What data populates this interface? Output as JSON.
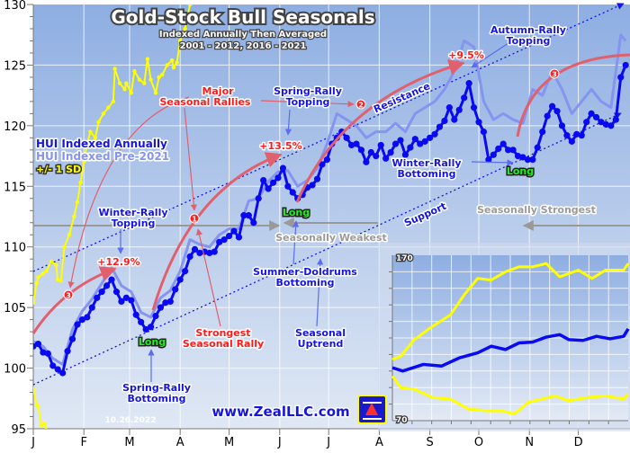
{
  "chart_data": {
    "type": "line",
    "title": "Gold-Stock Bull Seasonals",
    "subtitle": [
      "Indexed Annually Then Averaged",
      "2001 - 2012, 2016 - 2021"
    ],
    "xlim_day_of_year": [
      1,
      365
    ],
    "ylim": [
      95,
      130
    ],
    "y_ticks": [
      "95",
      "100",
      "105",
      "110",
      "115",
      "120",
      "125",
      "130"
    ],
    "x_ticks": [
      "J",
      "F",
      "M",
      "A",
      "M",
      "J",
      "J",
      "A",
      "S",
      "O",
      "N",
      "D"
    ],
    "grid": true,
    "legend": {
      "placement": "left",
      "items": [
        "HUI Indexed Annually",
        "HUI Indexed Pre-2021",
        "+/- 1 SD"
      ]
    },
    "colors": {
      "main": "#0a0af0",
      "pre2021": "#8594ee",
      "sd": "#ffff00",
      "rally_arcs": "#e0606e",
      "text_red": "#ff1a1a",
      "text_blue": "#1515e0",
      "long": "#22ee22"
    },
    "series": [
      {
        "name": "HUI Indexed Annually",
        "x": [
          1,
          4,
          7,
          10,
          13,
          16,
          19,
          22,
          25,
          28,
          31,
          34,
          37,
          40,
          43,
          46,
          49,
          52,
          55,
          58,
          61,
          64,
          67,
          70,
          73,
          76,
          79,
          82,
          85,
          88,
          91,
          94,
          97,
          100,
          103,
          106,
          109,
          112,
          115,
          118,
          121,
          124,
          127,
          130,
          133,
          136,
          139,
          142,
          145,
          148,
          151,
          154,
          157,
          160,
          163,
          166,
          169,
          172,
          175,
          178,
          181,
          184,
          187,
          190,
          193,
          196,
          199,
          202,
          205,
          208,
          211,
          214,
          217,
          220,
          223,
          226,
          229,
          232,
          235,
          238,
          241,
          244,
          247,
          250,
          253,
          256,
          259,
          262,
          265,
          268,
          271,
          274,
          277,
          280,
          283,
          286,
          289,
          292,
          295,
          298,
          301,
          304,
          307,
          310,
          313,
          316,
          319,
          322,
          325,
          328,
          331,
          334,
          337,
          340,
          343,
          346,
          349,
          352,
          355,
          358,
          361,
          364
        ],
        "y": [
          101.8,
          102,
          101.3,
          101.2,
          100.2,
          99.9,
          99.6,
          101.4,
          102.4,
          103.6,
          104,
          104.2,
          105,
          105.8,
          106.3,
          106.8,
          107.3,
          106.3,
          105.5,
          105.8,
          105.6,
          104.4,
          103.8,
          103.2,
          103.4,
          104.3,
          105,
          105.4,
          105.5,
          106.5,
          107.3,
          108,
          109.2,
          109.8,
          109.5,
          109.6,
          109.5,
          109.6,
          110.4,
          110.6,
          110.9,
          111.3,
          110.8,
          112.6,
          112.6,
          112,
          114,
          115.5,
          114.8,
          115.3,
          115.7,
          116.5,
          115,
          114.5,
          114,
          114.3,
          114.9,
          115.1,
          115.6,
          116.8,
          117.2,
          118.5,
          119,
          119.5,
          119,
          118.4,
          118.5,
          118,
          117,
          117.8,
          117.5,
          118.4,
          117.3,
          117.8,
          118.5,
          118.8,
          117.6,
          118.2,
          118.9,
          118.5,
          118.7,
          119,
          119.3,
          119.9,
          120.4,
          121.5,
          120.5,
          121.3,
          122.3,
          123.5,
          121.5,
          120.3,
          119.5,
          117.2,
          117.6,
          118.1,
          118.5,
          118,
          118,
          117.5,
          117.4,
          117.2,
          117.2,
          118.2,
          119.5,
          120.8,
          121.6,
          121.2,
          120,
          119.2,
          118.7,
          119.3,
          119.2,
          120.3,
          121,
          120.7,
          120.3,
          120.1,
          120,
          120.5,
          124,
          125
        ]
      },
      {
        "name": "HUI Indexed Pre-2021",
        "x": [
          1,
          7,
          13,
          19,
          25,
          31,
          37,
          43,
          49,
          55,
          61,
          67,
          73,
          79,
          85,
          91,
          97,
          103,
          109,
          115,
          121,
          127,
          133,
          139,
          145,
          151,
          157,
          163,
          169,
          175,
          181,
          187,
          193,
          199,
          205,
          211,
          217,
          223,
          229,
          235,
          241,
          247,
          253,
          259,
          265,
          271,
          277,
          283,
          289,
          295,
          301,
          307,
          313,
          319,
          325,
          331,
          337,
          343,
          349,
          355,
          361,
          364
        ],
        "y": [
          102.2,
          101.8,
          100.8,
          100.3,
          103.2,
          104.7,
          105.7,
          107,
          108.3,
          106.8,
          106.3,
          104.6,
          104.2,
          105.8,
          106.4,
          108,
          110.6,
          110.2,
          110,
          111,
          111.5,
          111.5,
          113.8,
          114,
          115.4,
          116.2,
          116.3,
          115,
          115.5,
          116.5,
          118.5,
          121,
          120.5,
          120,
          119,
          119.5,
          119.5,
          120.2,
          119.5,
          121,
          121.5,
          122,
          123,
          124.5,
          127,
          126.5,
          122,
          120.5,
          121,
          120.5,
          120.2,
          123,
          122.5,
          124.5,
          123,
          121,
          122,
          123,
          122,
          121.5,
          127.5,
          127
        ]
      },
      {
        "name": "+/- 1 SD",
        "band": "upper",
        "x": [
          1,
          3,
          4,
          7,
          9,
          12,
          15,
          16,
          18,
          20,
          23,
          26,
          28,
          30,
          32,
          34,
          36,
          39,
          41,
          44,
          47,
          50,
          51,
          54,
          57,
          58,
          61,
          63,
          66,
          69,
          71,
          73,
          76,
          78,
          80,
          83,
          86,
          87,
          89,
          91,
          94,
          97,
          98
        ],
        "y": [
          105.4,
          107,
          107.5,
          107.8,
          108,
          108.8,
          108.5,
          107.3,
          107.2,
          110,
          111,
          112.5,
          113.7,
          115.3,
          117,
          118.5,
          119.5,
          119,
          120.3,
          121,
          121.5,
          122,
          124.7,
          123.5,
          123,
          123.5,
          122.7,
          124.5,
          123.8,
          123.5,
          125.5,
          123.8,
          122.7,
          124,
          124.2,
          125,
          125.4,
          124.8,
          125.2,
          127,
          128,
          130,
          131
        ]
      },
      {
        "name": "+/- 1 SD",
        "band": "lower",
        "x": [
          1,
          3,
          4,
          6,
          8,
          10
        ],
        "y": [
          98.3,
          97,
          96.8,
          95.3,
          95.4,
          94.5
        ]
      }
    ],
    "inset": {
      "ylim": [
        70,
        170
      ],
      "y_tick_labels": [
        "170",
        "70"
      ],
      "series": [
        {
          "name": "HUI Indexed Annually",
          "x": [
            0,
            16,
            48,
            76,
            104,
            132,
            153,
            175,
            196,
            217,
            238,
            259,
            273,
            295,
            316,
            337,
            358,
            365
          ],
          "y": [
            102,
            100,
            104,
            103,
            108,
            111,
            115,
            113,
            117,
            117.5,
            120.5,
            122,
            119,
            118.5,
            121,
            119.5,
            121,
            125.5
          ]
        },
        {
          "name": "+/- 1 SD",
          "band": "upper",
          "x": [
            0,
            13,
            34,
            62,
            90,
            111,
            132,
            153,
            175,
            196,
            217,
            238,
            259,
            288,
            309,
            330,
            358,
            365
          ],
          "y": [
            107,
            109,
            119,
            127,
            134,
            146,
            156,
            155,
            160,
            163,
            163,
            165,
            157,
            161,
            156,
            161,
            161,
            165
          ]
        },
        {
          "name": "+/- 1 SD",
          "band": "lower",
          "x": [
            0,
            13,
            34,
            62,
            90,
            118,
            147,
            168,
            189,
            210,
            231,
            252,
            273,
            302,
            330,
            358,
            365
          ],
          "y": [
            97,
            90,
            89,
            84,
            83,
            77,
            76,
            76,
            74,
            81,
            83,
            85,
            82,
            84,
            85,
            83,
            86
          ]
        }
      ]
    },
    "annotations": {
      "major": "Major",
      "seasonal_rallies": "Seasonal Rallies",
      "spring_topping_1": "Spring-Rally",
      "spring_topping_2": "Topping",
      "gain_spring": "+13.5%",
      "winter_topping_1": "Winter-Rally",
      "winter_topping_2": "Topping",
      "gain_winter": "+12.9%",
      "strongest_1": "Strongest",
      "strongest_2": "Seasonal Rally",
      "long": "Long",
      "seasonally_weakest": "Seasonally Weakest",
      "doldrums_1": "Summer-Doldrums",
      "doldrums_2": "Bottoming",
      "uptrend_1": "Seasonal",
      "uptrend_2": "Uptrend",
      "spring_bottoming_1": "Spring-Rally",
      "spring_bottoming_2": "Bottoming",
      "resistance": "Resistance",
      "support": "Support",
      "winter_bottoming_1": "Winter-Rally",
      "winter_bottoming_2": "Bottoming",
      "autumn_topping_1": "Autumn-Rally",
      "autumn_topping_2": "Topping",
      "gain_autumn": "+9.5%",
      "seasonally_strongest": "Seasonally Strongest",
      "rally_markers": [
        "1",
        "2",
        "3",
        "3"
      ]
    },
    "date_stamp": "10.26.2022",
    "website": "www.ZealLLC.com",
    "logo_text": "ZZ"
  }
}
